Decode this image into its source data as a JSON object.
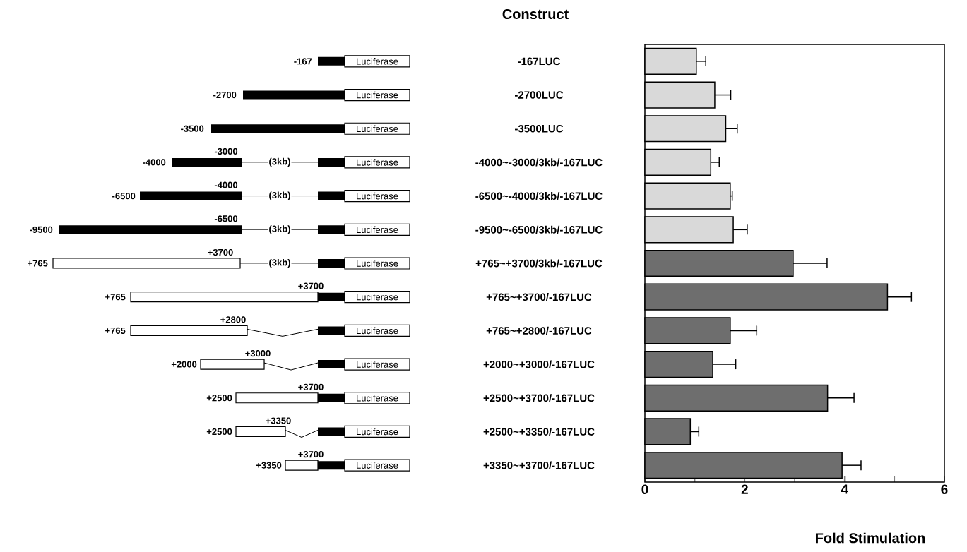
{
  "chart_data": {
    "type": "bar",
    "orientation": "horizontal",
    "title": "Construct",
    "xlabel": "Fold Stimulation",
    "categories": [
      "-167LUC",
      "-2700LUC",
      "-3500LUC",
      "-4000~-3000/3kb/-167LUC",
      "-6500~-4000/3kb/-167LUC",
      "-9500~-6500/3kb/-167LUC",
      "+765~+3700/3kb/-167LUC",
      "+765~+3700/-167LUC",
      "+765~+2800/-167LUC",
      "+2000~+3000/-167LUC",
      "+2500~+3700/-167LUC",
      "+2500~+3350/-167LUC",
      "+3350~+3700/-167LUC"
    ],
    "values": [
      1.03,
      1.4,
      1.62,
      1.32,
      1.71,
      1.77,
      2.97,
      4.86,
      1.71,
      1.36,
      3.66,
      0.91,
      3.95
    ],
    "errors": [
      [
        1.03,
        1.22
      ],
      [
        1.4,
        1.72
      ],
      [
        1.62,
        1.85
      ],
      [
        1.32,
        1.49
      ],
      [
        1.71,
        1.75
      ],
      [
        1.77,
        2.05
      ],
      [
        2.97,
        3.65
      ],
      [
        4.86,
        5.34
      ],
      [
        1.71,
        2.24
      ],
      [
        1.36,
        1.82
      ],
      [
        3.66,
        4.19
      ],
      [
        0.91,
        1.08
      ],
      [
        3.95,
        4.33
      ]
    ],
    "colors": [
      "#d9d9d9",
      "#d9d9d9",
      "#d9d9d9",
      "#d9d9d9",
      "#d9d9d9",
      "#d9d9d9",
      "#6e6e6e",
      "#6e6e6e",
      "#6e6e6e",
      "#6e6e6e",
      "#6e6e6e",
      "#6e6e6e",
      "#6e6e6e"
    ],
    "xlim": [
      0,
      6
    ],
    "xticks": [
      0,
      {
        "value": 1,
        "label": null
      },
      2,
      {
        "value": 3,
        "label": null
      },
      4,
      {
        "value": 5,
        "label": null
      },
      6
    ],
    "annotations": [
      "-167",
      "Luciferase",
      "-2700",
      "Luciferase",
      "-3500",
      "Luciferase",
      "-4000",
      "-3000",
      "(3kb)",
      "Luciferase",
      "-6500",
      "-4000",
      "(3kb)",
      "Luciferase",
      "-9500",
      "-6500",
      "(3kb)",
      "Luciferase",
      "+765",
      "+3700",
      "(3kb)",
      "Luciferase",
      "+765",
      "+3700",
      "Luciferase",
      "+765",
      "+2800",
      "Luciferase",
      "+2000",
      "+3000",
      "Luciferase",
      "+2500",
      "+3700",
      "Luciferase",
      "+2500",
      "+3350",
      "Luciferase",
      "+3350",
      "+3700",
      "Luciferase"
    ]
  }
}
